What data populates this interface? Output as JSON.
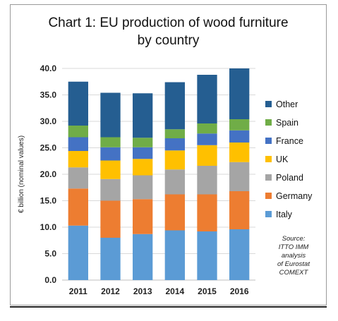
{
  "chart_data": {
    "type": "bar",
    "stacked": true,
    "title": "Chart 1: EU production of wood furniture by country",
    "title_lines": [
      "Chart 1: EU production of wood furniture",
      "by country"
    ],
    "ylabel": "€ billion (nominal values)",
    "ylim": [
      0,
      40
    ],
    "yticks": [
      "0.0",
      "5.0",
      "10.0",
      "15.0",
      "20.0",
      "25.0",
      "30.0",
      "35.0",
      "40.0"
    ],
    "categories": [
      "2011",
      "2012",
      "2013",
      "2014",
      "2015",
      "2016"
    ],
    "grid": true,
    "legend_position": "right",
    "series": [
      {
        "name": "Italy",
        "color": "#5b9bd5",
        "values": [
          10.3,
          8.0,
          8.7,
          9.4,
          9.2,
          9.6
        ]
      },
      {
        "name": "Germany",
        "color": "#ed7d31",
        "values": [
          7.0,
          7.0,
          6.6,
          6.8,
          7.0,
          7.2
        ]
      },
      {
        "name": "Poland",
        "color": "#a5a5a5",
        "values": [
          4.0,
          4.1,
          4.5,
          4.7,
          5.4,
          5.5
        ]
      },
      {
        "name": "UK",
        "color": "#ffc000",
        "values": [
          3.1,
          3.5,
          3.1,
          3.6,
          3.9,
          3.7
        ]
      },
      {
        "name": "France",
        "color": "#4472c4",
        "values": [
          2.6,
          2.5,
          2.2,
          2.3,
          2.2,
          2.3
        ]
      },
      {
        "name": "Spain",
        "color": "#70ad47",
        "values": [
          2.2,
          1.9,
          1.8,
          1.7,
          1.9,
          2.1
        ]
      },
      {
        "name": "Other",
        "color": "#255e91",
        "values": [
          8.3,
          8.4,
          8.4,
          8.9,
          9.2,
          9.6
        ]
      }
    ],
    "legend_order": [
      "Other",
      "Spain",
      "France",
      "UK",
      "Poland",
      "Germany",
      "Italy"
    ],
    "annotation_lines": [
      "Source:",
      "ITTO IMM",
      "analysis",
      "of Eurostat",
      "COMEXT"
    ]
  }
}
